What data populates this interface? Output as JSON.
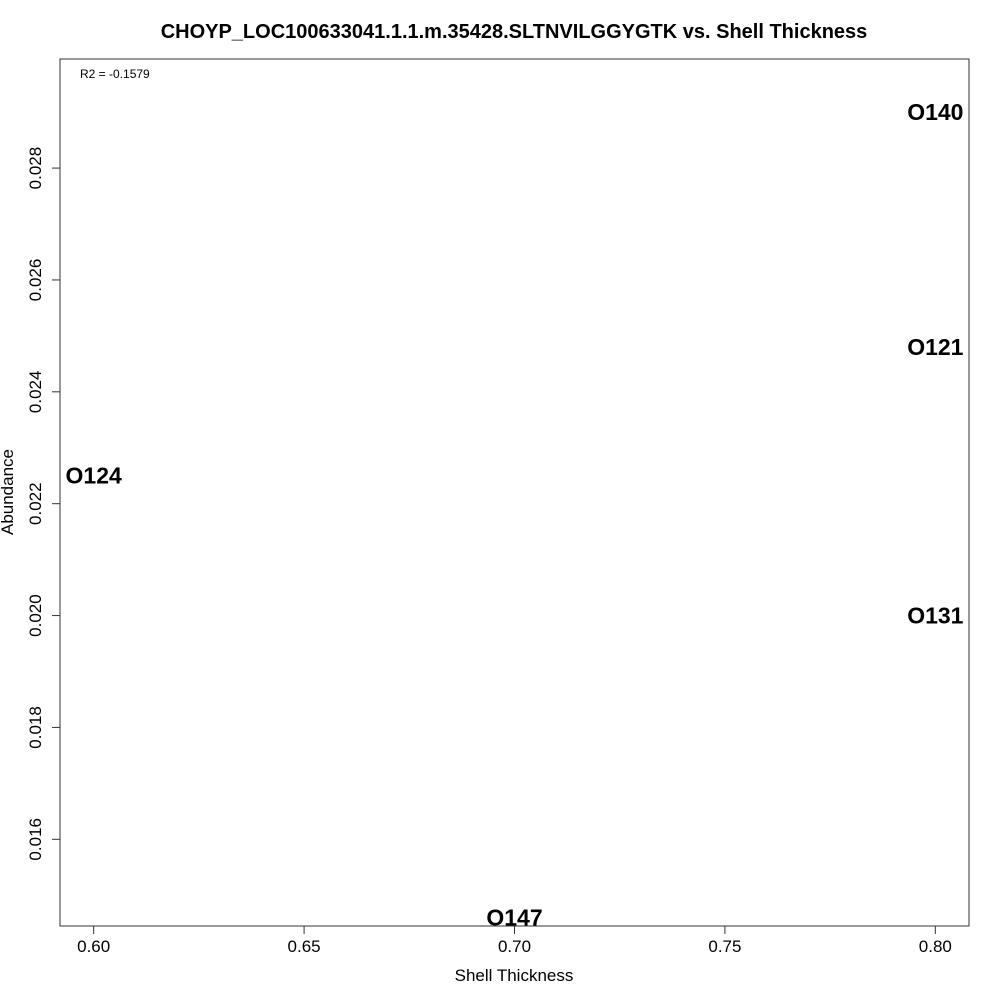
{
  "chart_data": {
    "type": "scatter",
    "title": "CHOYP_LOC100633041.1.1.m.35428.SLTNVILGGYGTK vs. Shell Thickness",
    "xlabel": "Shell Thickness",
    "ylabel": "Abundance",
    "annotation": "R2 = -0.1579",
    "xlim": [
      0.592,
      0.808
    ],
    "ylim": [
      0.01445,
      0.02995
    ],
    "xticks": [
      {
        "value": 0.6,
        "label": "0.60"
      },
      {
        "value": 0.65,
        "label": "0.65"
      },
      {
        "value": 0.7,
        "label": "0.70"
      },
      {
        "value": 0.75,
        "label": "0.75"
      },
      {
        "value": 0.8,
        "label": "0.80"
      }
    ],
    "yticks": [
      {
        "value": 0.016,
        "label": "0.016"
      },
      {
        "value": 0.018,
        "label": "0.018"
      },
      {
        "value": 0.02,
        "label": "0.020"
      },
      {
        "value": 0.022,
        "label": "0.022"
      },
      {
        "value": 0.024,
        "label": "0.024"
      },
      {
        "value": 0.026,
        "label": "0.026"
      },
      {
        "value": 0.028,
        "label": "0.028"
      }
    ],
    "points": [
      {
        "label": "O140",
        "x": 0.8,
        "y": 0.029
      },
      {
        "label": "O121",
        "x": 0.8,
        "y": 0.0248
      },
      {
        "label": "O124",
        "x": 0.6,
        "y": 0.0225
      },
      {
        "label": "O131",
        "x": 0.8,
        "y": 0.02
      },
      {
        "label": "O147",
        "x": 0.7,
        "y": 0.0146
      }
    ],
    "grid": false,
    "legend": "none"
  }
}
